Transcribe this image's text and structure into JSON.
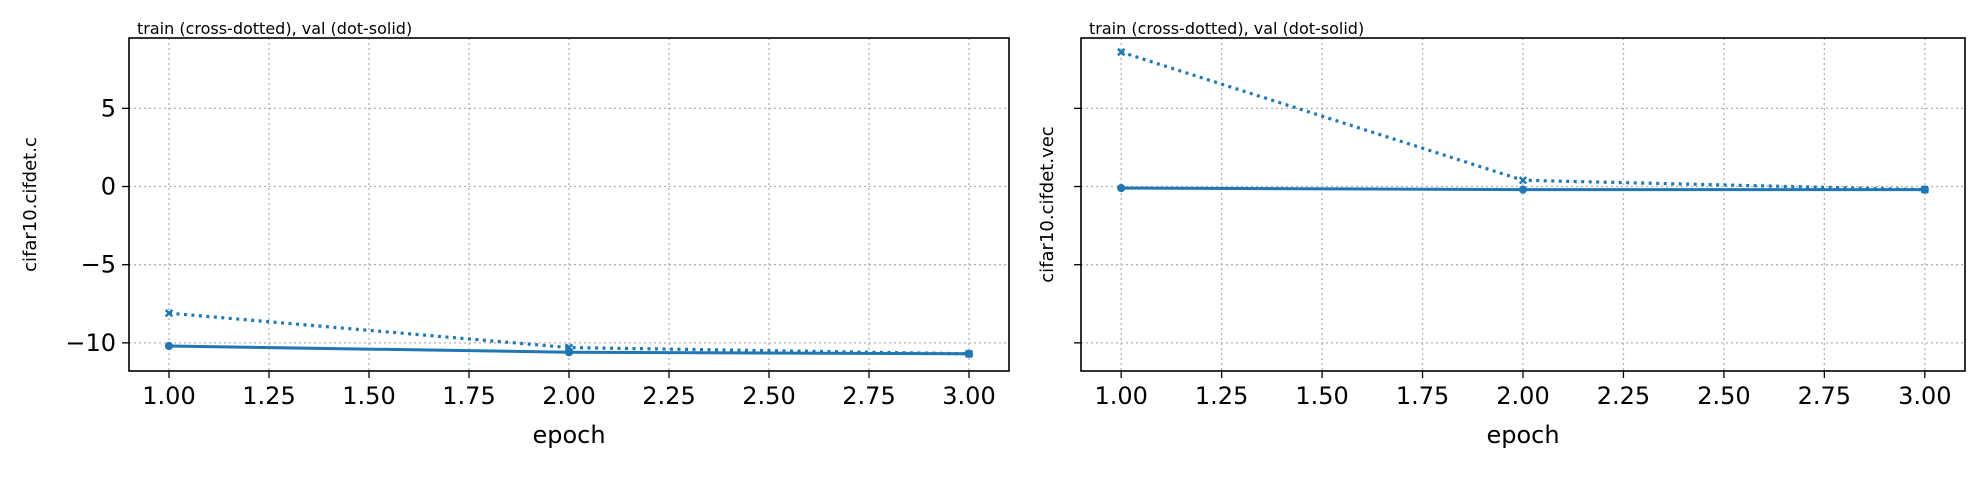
{
  "chart_data": [
    {
      "type": "line",
      "subtitle": "train (cross-dotted), val (dot-solid)",
      "xlabel": "epoch",
      "ylabel": "cifar10.cifdet.c",
      "xlim": [
        0.9,
        3.1
      ],
      "ylim": [
        -11.8,
        9.5
      ],
      "x_ticks": [
        1.0,
        1.25,
        1.5,
        1.75,
        2.0,
        2.25,
        2.5,
        2.75,
        3.0
      ],
      "x_tick_labels": [
        "1.00",
        "1.25",
        "1.50",
        "1.75",
        "2.00",
        "2.25",
        "2.50",
        "2.75",
        "3.00"
      ],
      "y_ticks": [
        -10,
        -5,
        0,
        5
      ],
      "y_tick_labels": [
        "−10",
        "−5",
        "0",
        "5"
      ],
      "show_y_tick_labels": true,
      "grid": true,
      "color": "#1f77b4",
      "series": [
        {
          "role": "train",
          "marker": "x",
          "linestyle": "dotted",
          "x": [
            1,
            2,
            3
          ],
          "y": [
            -8.1,
            -10.3,
            -10.7
          ]
        },
        {
          "role": "val",
          "marker": "o",
          "linestyle": "solid",
          "x": [
            1,
            2,
            3
          ],
          "y": [
            -10.2,
            -10.6,
            -10.7
          ]
        }
      ]
    },
    {
      "type": "line",
      "subtitle": "train (cross-dotted), val (dot-solid)",
      "xlabel": "epoch",
      "ylabel": "cifar10.cifdet.vec",
      "xlim": [
        0.9,
        3.1
      ],
      "ylim": [
        -11.8,
        9.5
      ],
      "x_ticks": [
        1.0,
        1.25,
        1.5,
        1.75,
        2.0,
        2.25,
        2.5,
        2.75,
        3.0
      ],
      "x_tick_labels": [
        "1.00",
        "1.25",
        "1.50",
        "1.75",
        "2.00",
        "2.25",
        "2.50",
        "2.75",
        "3.00"
      ],
      "y_ticks": [
        -10,
        -5,
        0,
        5
      ],
      "y_tick_labels": [
        "−10",
        "−5",
        "0",
        "5"
      ],
      "show_y_tick_labels": false,
      "grid": true,
      "color": "#1f77b4",
      "series": [
        {
          "role": "train",
          "marker": "x",
          "linestyle": "dotted",
          "x": [
            1,
            2,
            3
          ],
          "y": [
            8.6,
            0.4,
            -0.2
          ]
        },
        {
          "role": "val",
          "marker": "o",
          "linestyle": "solid",
          "x": [
            1,
            2,
            3
          ],
          "y": [
            -0.1,
            -0.2,
            -0.2
          ]
        }
      ]
    }
  ]
}
